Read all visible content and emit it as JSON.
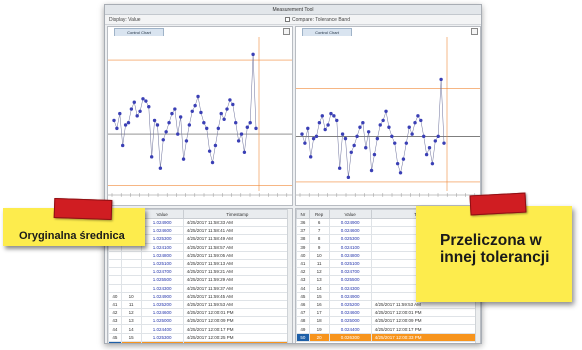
{
  "window": {
    "title": "Measurement Tool",
    "menu_left": "Display: Value",
    "menu_right": "Compare: Tolerance Band"
  },
  "panes": {
    "left": {
      "tab": "Control Chart"
    },
    "right": {
      "tab": "Control Chart"
    }
  },
  "colors": {
    "point": "#3a3fb5",
    "mean_line": "#555555",
    "limit_line": "#f08a3a",
    "highlight_row": "#f7941d",
    "selected_cell": "#1d5fa8",
    "callout": "#fdec4d",
    "tape": "#d01d22"
  },
  "chart_data": [
    {
      "type": "line",
      "name": "left-control-chart",
      "x": [
        1,
        2,
        3,
        4,
        5,
        6,
        7,
        8,
        9,
        10,
        11,
        12,
        13,
        14,
        15,
        16,
        17,
        18,
        19,
        20,
        21,
        22,
        23,
        24,
        25,
        26,
        27,
        28,
        29,
        30,
        31,
        32,
        33,
        34,
        35,
        36,
        37,
        38,
        39,
        40,
        41,
        42,
        43,
        44,
        45,
        46,
        47,
        48,
        49,
        50
      ],
      "values": [
        62,
        55,
        68,
        40,
        58,
        60,
        72,
        78,
        66,
        70,
        81,
        79,
        74,
        30,
        62,
        58,
        20,
        45,
        52,
        60,
        68,
        72,
        50,
        65,
        28,
        44,
        58,
        70,
        75,
        83,
        69,
        60,
        55,
        35,
        25,
        40,
        55,
        68,
        63,
        72,
        80,
        76,
        60,
        44,
        50,
        34,
        56,
        60,
        120,
        55
      ],
      "limits": {
        "upper": 115,
        "center": 50,
        "lower": 5
      }
    },
    {
      "type": "line",
      "name": "right-control-chart",
      "x": [
        1,
        2,
        3,
        4,
        5,
        6,
        7,
        8,
        9,
        10,
        11,
        12,
        13,
        14,
        15,
        16,
        17,
        18,
        19,
        20,
        21,
        22,
        23,
        24,
        25,
        26,
        27,
        28,
        29,
        30,
        31,
        32,
        33,
        34,
        35,
        36,
        37,
        38,
        39,
        40,
        41,
        42,
        43,
        44,
        45,
        46,
        47,
        48,
        49,
        50
      ],
      "values": [
        50,
        42,
        55,
        30,
        46,
        48,
        60,
        66,
        54,
        58,
        68,
        66,
        62,
        20,
        50,
        46,
        12,
        34,
        40,
        48,
        56,
        60,
        38,
        52,
        18,
        32,
        46,
        58,
        62,
        70,
        56,
        48,
        42,
        24,
        16,
        28,
        42,
        56,
        50,
        60,
        66,
        62,
        48,
        32,
        38,
        24,
        44,
        48,
        98,
        42
      ],
      "limits": {
        "upper": 90,
        "center": 48,
        "lower": 8
      }
    }
  ],
  "table_left": {
    "headers": [
      "Nr",
      "Rep",
      "Value",
      "Timestamp"
    ],
    "rows": [
      [
        "",
        "",
        "1.024900",
        "4/25/2017 11:58:33 AM"
      ],
      [
        "",
        "",
        "1.024600",
        "4/25/2017 11:58:41 AM"
      ],
      [
        "",
        "",
        "1.025300",
        "4/25/2017 11:58:49 AM"
      ],
      [
        "",
        "",
        "1.024100",
        "4/25/2017 11:58:57 AM"
      ],
      [
        "",
        "",
        "1.024800",
        "4/25/2017 11:59:05 AM"
      ],
      [
        "",
        "",
        "1.025100",
        "4/25/2017 11:59:13 AM"
      ],
      [
        "",
        "",
        "1.024700",
        "4/25/2017 11:59:21 AM"
      ],
      [
        "",
        "",
        "1.025500",
        "4/25/2017 11:59:29 AM"
      ],
      [
        "",
        "",
        "1.024300",
        "4/25/2017 11:59:37 AM"
      ],
      [
        "40",
        "10",
        "1.024900",
        "4/25/2017 11:59:45 AM"
      ],
      [
        "41",
        "11",
        "1.025200",
        "4/25/2017 11:59:53 AM"
      ],
      [
        "42",
        "12",
        "1.024600",
        "4/25/2017 12:00:01 PM"
      ],
      [
        "43",
        "13",
        "1.025000",
        "4/25/2017 12:00:09 PM"
      ],
      [
        "44",
        "14",
        "1.024400",
        "4/25/2017 12:00:17 PM"
      ],
      [
        "45",
        "15",
        "1.025300",
        "4/25/2017 12:00:25 PM"
      ]
    ],
    "selected": [
      "46",
      "16",
      "1.026300",
      "4/25/2017 12:00:33 PM"
    ]
  },
  "table_right": {
    "headers": [
      "Nr",
      "Rep",
      "Value",
      "Timestamp"
    ],
    "rows": [
      [
        "36",
        "6",
        "0.024900",
        ""
      ],
      [
        "37",
        "7",
        "0.024600",
        ""
      ],
      [
        "38",
        "8",
        "0.025300",
        ""
      ],
      [
        "39",
        "9",
        "0.024100",
        ""
      ],
      [
        "40",
        "10",
        "0.024800",
        ""
      ],
      [
        "41",
        "11",
        "0.025100",
        ""
      ],
      [
        "42",
        "12",
        "0.024700",
        ""
      ],
      [
        "43",
        "13",
        "0.025500",
        ""
      ],
      [
        "44",
        "14",
        "0.024300",
        ""
      ],
      [
        "45",
        "15",
        "0.024900",
        ""
      ],
      [
        "46",
        "16",
        "0.025200",
        "4/25/2017 11:59:53 AM"
      ],
      [
        "47",
        "17",
        "0.024600",
        "4/25/2017 12:00:01 PM"
      ],
      [
        "48",
        "18",
        "0.025000",
        "4/25/2017 12:00:09 PM"
      ],
      [
        "49",
        "19",
        "0.024400",
        "4/25/2017 12:00:17 PM"
      ]
    ],
    "selected": [
      "50",
      "20",
      "0.026300",
      "4/25/2017 12:00:33 PM"
    ]
  },
  "callouts": {
    "left": "Oryginalna średnica",
    "right": "Przeliczona w innej tolerancji"
  }
}
